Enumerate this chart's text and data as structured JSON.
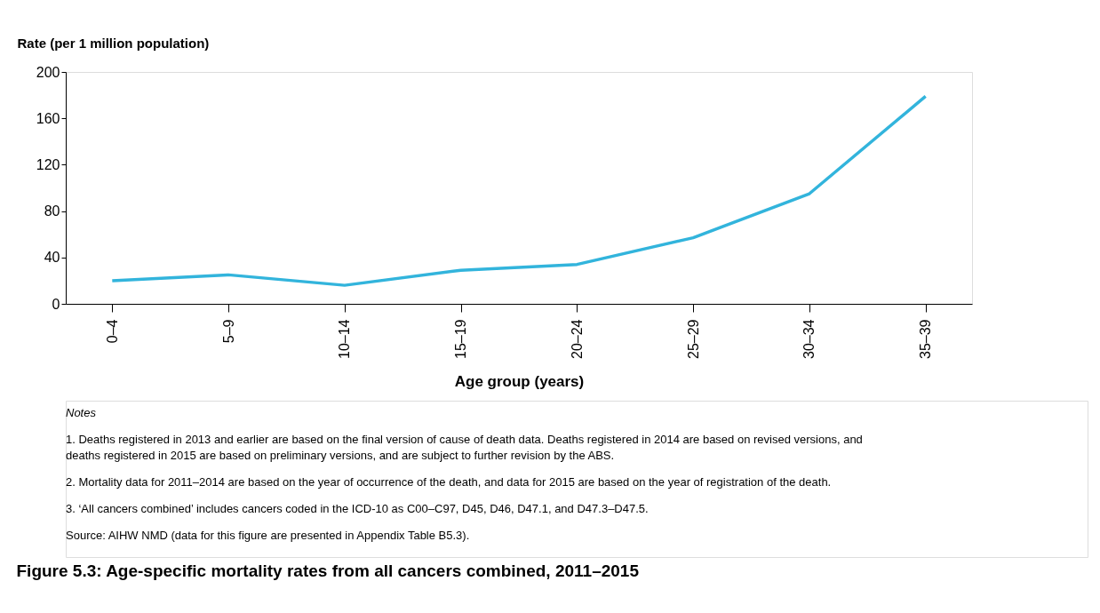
{
  "chart_data": {
    "type": "line",
    "title": "Figure 5.3: Age-specific mortality rates from all cancers combined, 2011–2015",
    "ylabel": "Rate (per 1 million population)",
    "xlabel": "Age group (years)",
    "categories": [
      "0–4",
      "5–9",
      "10–14",
      "15–19",
      "20–24",
      "25–29",
      "30–34",
      "35–39"
    ],
    "series": [
      {
        "color": "#32b4dc",
        "values": [
          20,
          25,
          16,
          29,
          34,
          57,
          95,
          179
        ]
      }
    ],
    "ylim": [
      0,
      200
    ],
    "yticks": [
      0,
      40,
      80,
      120,
      160,
      200
    ],
    "grid": false,
    "annotations": [
      "Notes",
      "1.    Deaths registered in 2013 and earlier are based on the final version of cause of death data. Deaths registered in 2014 are based on revised versions, and deaths registered in 2015 are based on preliminary versions, and are subject to further revision by the ABS.",
      "2.    Mortality data for 2011–2014 are based on the year of occurrence of the death, and data for 2015 are based on the year of registration of the death.",
      "3.    ‘All cancers combined’ includes cancers coded in the ICD-10 as C00–C97, D45, D46, D47.1, and D47.3–D47.5.",
      "Source: AIHW NMD (data for this figure are presented in Appendix Table B5.3)."
    ]
  }
}
